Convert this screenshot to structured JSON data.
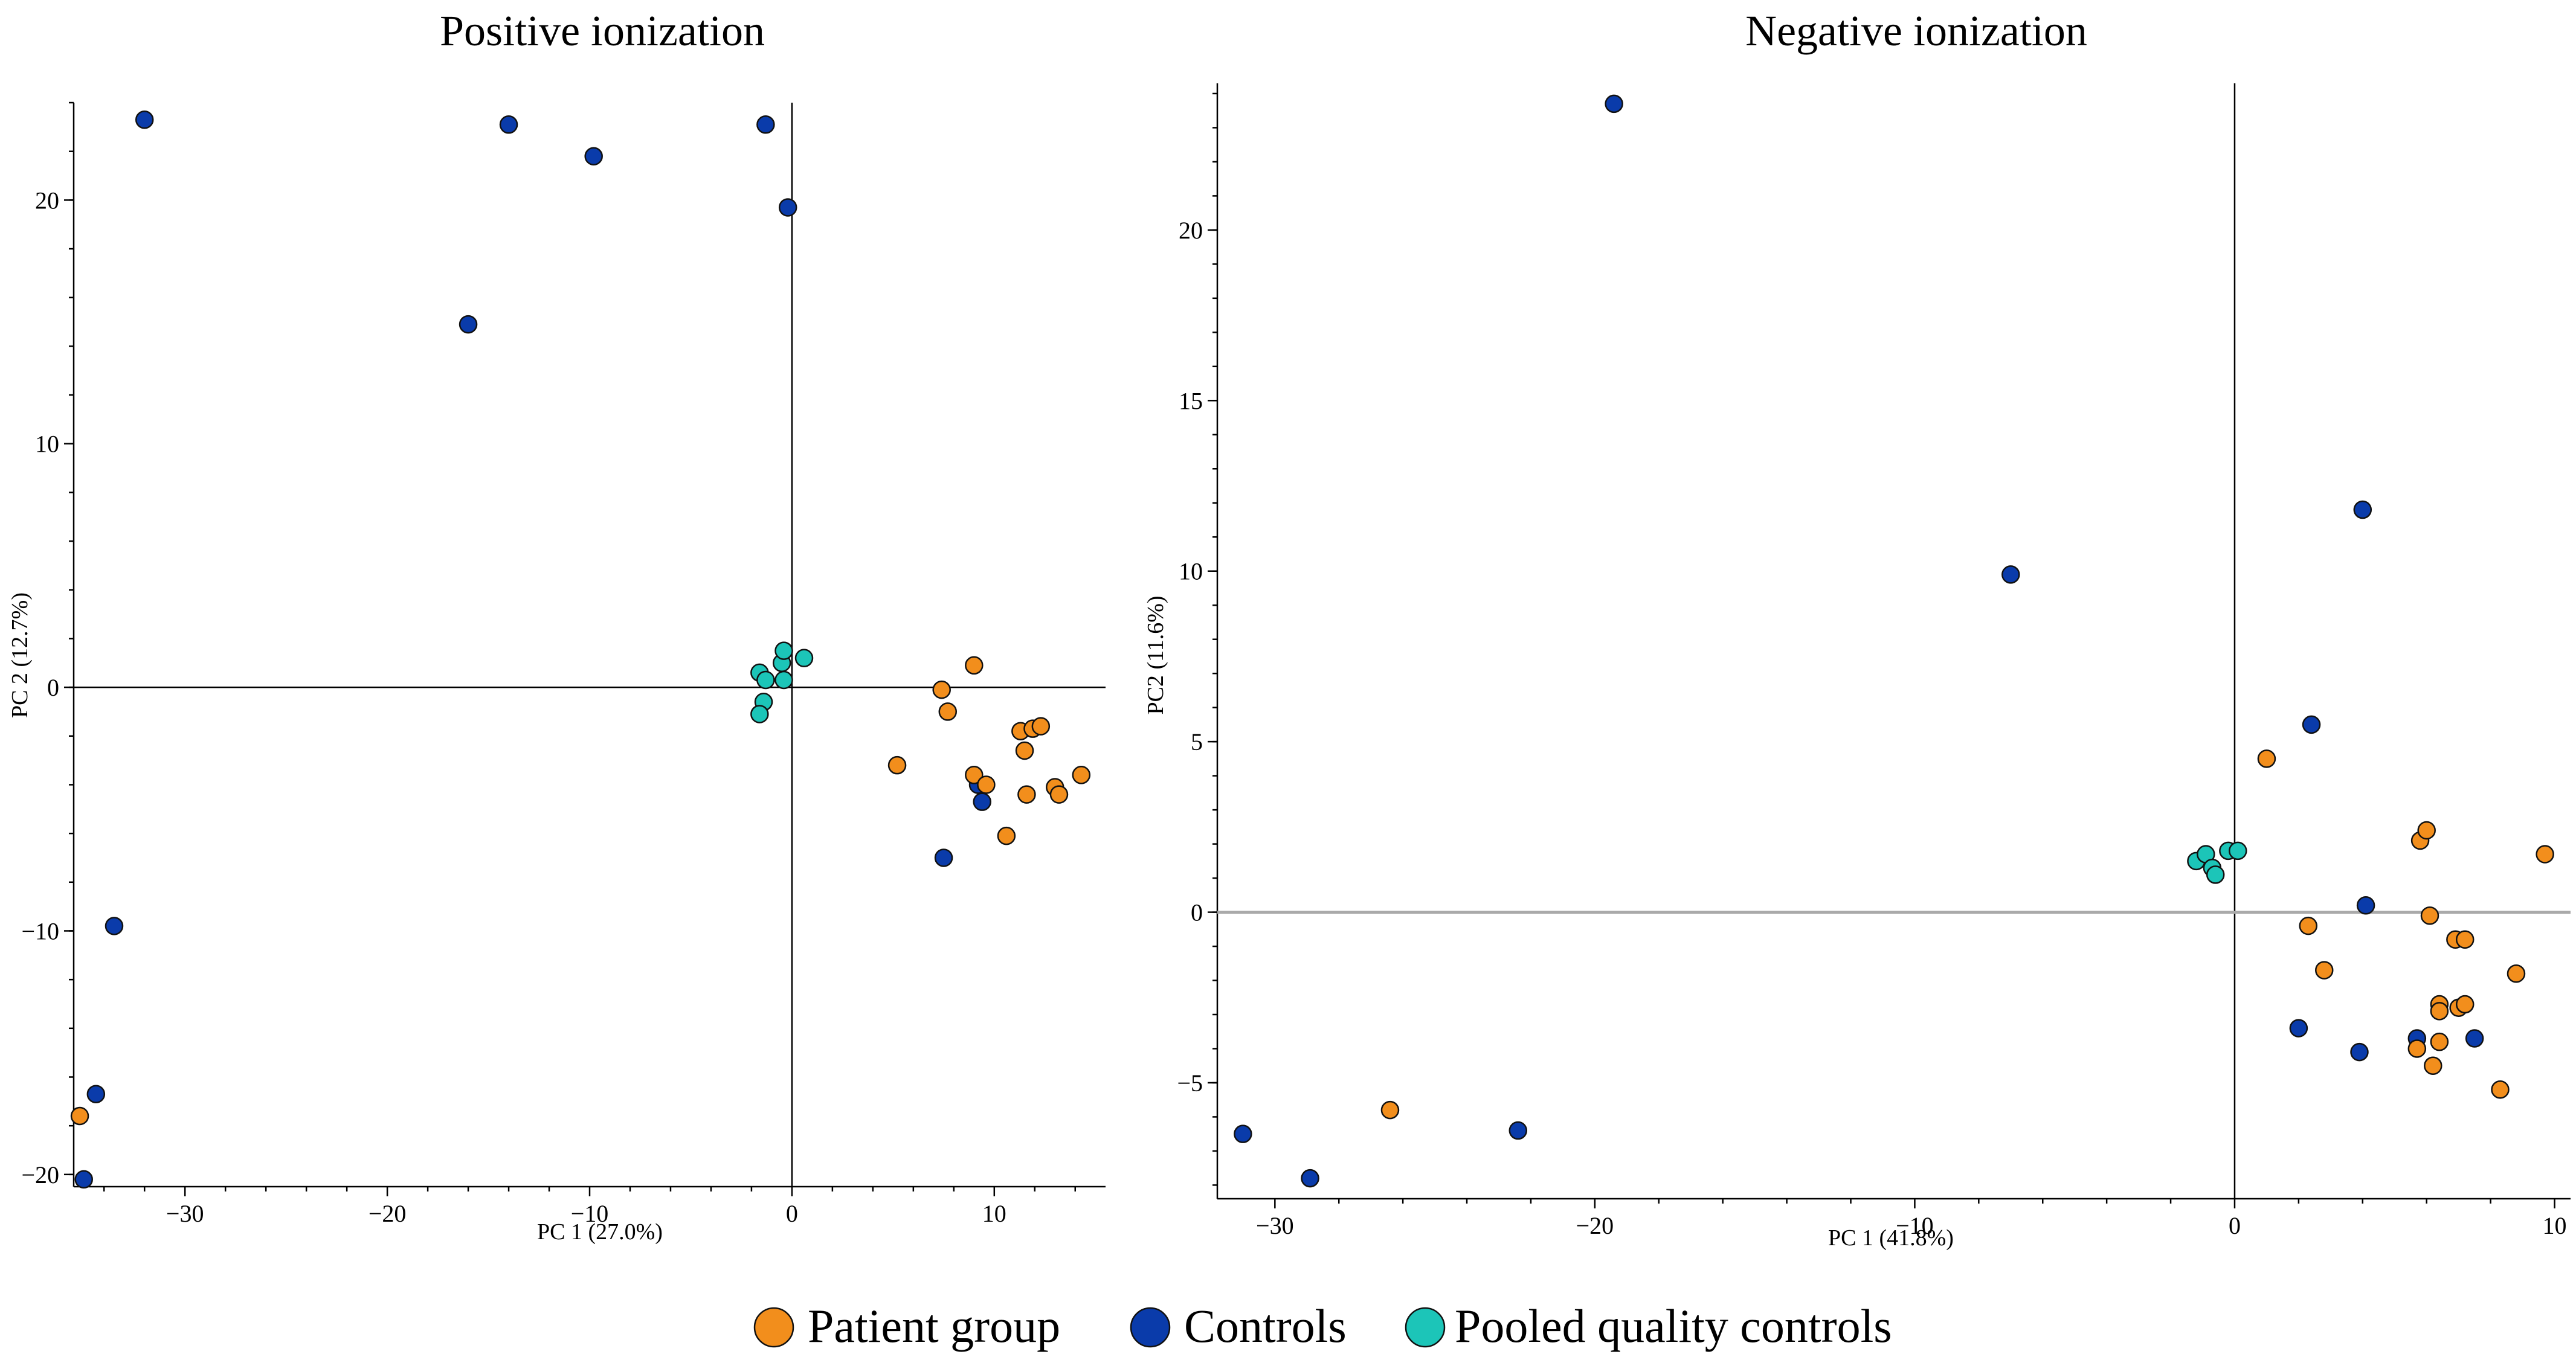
{
  "colors": {
    "patient": "#F28E1C",
    "control": "#0A3BAA",
    "qc": "#1CC5B8",
    "zero_line_positive": "#000000",
    "zero_line_negative": "#AAAAAA"
  },
  "legend": {
    "patient": "Patient group",
    "control": "Controls",
    "qc": "Pooled quality controls"
  },
  "chart_data": [
    {
      "type": "scatter",
      "title": "Positive ionization",
      "xlabel": "PC 1 (27.0%)",
      "ylabel": "PC 2 (12.7%)",
      "xlim": [
        -35.5,
        15.5
      ],
      "ylim": [
        -20.5,
        24
      ],
      "xticks": [
        -30,
        -20,
        -10,
        0,
        10
      ],
      "xtick_labels": [
        "−30",
        "−20",
        "−10",
        "0",
        "10"
      ],
      "yticks": [
        -20,
        -10,
        0,
        10,
        20
      ],
      "ytick_labels": [
        "−20",
        "−10",
        "0",
        "10",
        "20"
      ],
      "grid": false,
      "series": [
        {
          "name": "Controls",
          "color_key": "control",
          "points": [
            [
              -32.0,
              23.3
            ],
            [
              -14.0,
              23.1
            ],
            [
              -9.8,
              21.8
            ],
            [
              -1.3,
              23.1
            ],
            [
              -0.2,
              19.7
            ],
            [
              -16.0,
              14.9
            ],
            [
              -33.5,
              -9.8
            ],
            [
              -34.4,
              -16.7
            ],
            [
              -35.0,
              -20.2
            ],
            [
              7.5,
              -7.0
            ],
            [
              9.2,
              -4.0
            ],
            [
              9.4,
              -4.7
            ]
          ]
        },
        {
          "name": "Patient group",
          "color_key": "patient",
          "points": [
            [
              -35.2,
              -17.6
            ],
            [
              7.4,
              -0.1
            ],
            [
              9.0,
              0.9
            ],
            [
              7.7,
              -1.0
            ],
            [
              5.2,
              -3.2
            ],
            [
              9.0,
              -3.6
            ],
            [
              9.6,
              -4.0
            ],
            [
              11.3,
              -1.8
            ],
            [
              11.5,
              -2.6
            ],
            [
              11.9,
              -1.7
            ],
            [
              12.3,
              -1.6
            ],
            [
              11.6,
              -4.4
            ],
            [
              10.6,
              -6.1
            ],
            [
              13.0,
              -4.1
            ],
            [
              13.2,
              -4.4
            ],
            [
              14.3,
              -3.6
            ]
          ]
        },
        {
          "name": "Pooled quality controls",
          "color_key": "qc",
          "points": [
            [
              -1.6,
              0.6
            ],
            [
              -1.3,
              0.3
            ],
            [
              -1.4,
              -0.6
            ],
            [
              -1.6,
              -1.1
            ],
            [
              -0.5,
              1.0
            ],
            [
              -0.4,
              1.5
            ],
            [
              -0.4,
              0.3
            ],
            [
              0.6,
              1.2
            ]
          ]
        }
      ]
    },
    {
      "type": "scatter",
      "title": "Negative ionization",
      "xlabel": "PC 1 (41.8%)",
      "ylabel": "PC2 (11.6%)",
      "xlim": [
        -31.8,
        10.5
      ],
      "ylim": [
        -8.4,
        24.3
      ],
      "xticks": [
        -30,
        -20,
        -10,
        0,
        10
      ],
      "xtick_labels": [
        "−30",
        "−20",
        "−10",
        "0",
        "10"
      ],
      "yticks": [
        -5,
        0,
        5,
        10,
        15,
        20
      ],
      "ytick_labels": [
        "−5",
        "0",
        "5",
        "10",
        "15",
        "20"
      ],
      "grid": false,
      "series": [
        {
          "name": "Controls",
          "color_key": "control",
          "points": [
            [
              -19.4,
              23.7
            ],
            [
              -7.0,
              9.9
            ],
            [
              4.0,
              11.8
            ],
            [
              2.4,
              5.5
            ],
            [
              4.1,
              0.2
            ],
            [
              -31.0,
              -6.5
            ],
            [
              -28.9,
              -7.8
            ],
            [
              -22.4,
              -6.4
            ],
            [
              2.0,
              -3.4
            ],
            [
              3.9,
              -4.1
            ],
            [
              5.7,
              -3.7
            ],
            [
              7.5,
              -3.7
            ]
          ]
        },
        {
          "name": "Patient group",
          "color_key": "patient",
          "points": [
            [
              -26.4,
              -5.8
            ],
            [
              1.0,
              4.5
            ],
            [
              5.8,
              2.1
            ],
            [
              6.0,
              2.4
            ],
            [
              9.7,
              1.7
            ],
            [
              2.3,
              -0.4
            ],
            [
              6.1,
              -0.1
            ],
            [
              6.9,
              -0.8
            ],
            [
              7.2,
              -0.8
            ],
            [
              2.8,
              -1.7
            ],
            [
              8.8,
              -1.8
            ],
            [
              6.4,
              -2.7
            ],
            [
              6.4,
              -2.9
            ],
            [
              7.0,
              -2.8
            ],
            [
              7.2,
              -2.7
            ],
            [
              5.7,
              -4.0
            ],
            [
              6.4,
              -3.8
            ],
            [
              6.2,
              -4.5
            ],
            [
              8.3,
              -5.2
            ]
          ]
        },
        {
          "name": "Pooled quality controls",
          "color_key": "qc",
          "points": [
            [
              -1.2,
              1.5
            ],
            [
              -0.9,
              1.7
            ],
            [
              -0.7,
              1.3
            ],
            [
              -0.6,
              1.1
            ],
            [
              -0.2,
              1.8
            ],
            [
              0.1,
              1.8
            ]
          ]
        }
      ]
    }
  ]
}
